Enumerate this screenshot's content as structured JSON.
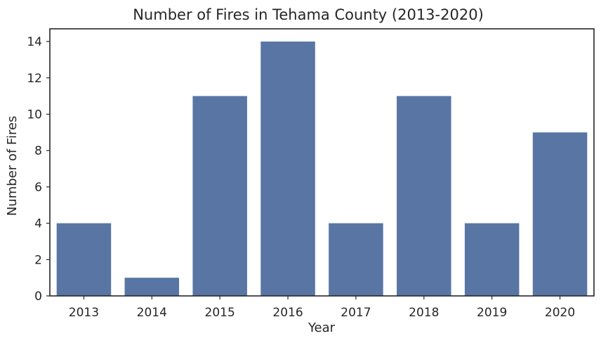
{
  "chart_data": {
    "type": "bar",
    "title": "Number of Fires in Tehama County (2013-2020)",
    "xlabel": "Year",
    "ylabel": "Number of Fires",
    "categories": [
      "2013",
      "2014",
      "2015",
      "2016",
      "2017",
      "2018",
      "2019",
      "2020"
    ],
    "values": [
      4,
      1,
      11,
      14,
      4,
      11,
      4,
      9
    ],
    "ylim": [
      0,
      14.7
    ],
    "yticks": [
      0,
      2,
      4,
      6,
      8,
      10,
      12,
      14
    ],
    "grid": false,
    "colors": {
      "bar": "#5875a4",
      "axes": "#262626"
    }
  }
}
